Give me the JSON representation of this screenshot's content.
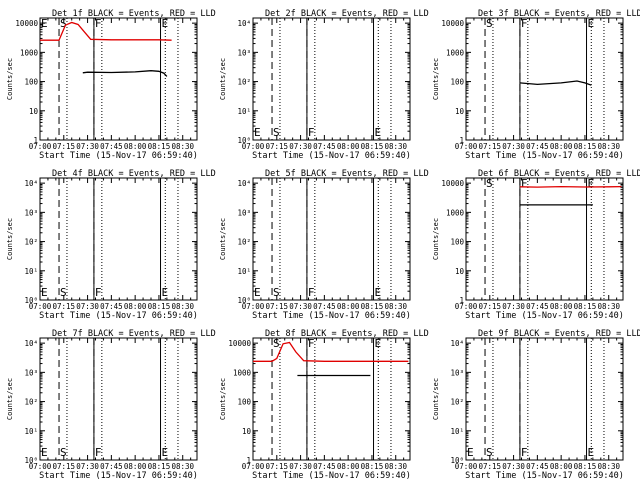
{
  "title_suffix": "BLACK = Events, RED = LLD",
  "xlabel": "Start Time (15-Nov-17 06:59:40)",
  "ylabel": "Counts/sec",
  "x_ticks": [
    "07:00",
    "07:15",
    "07:30",
    "07:45",
    "08:00",
    "08:15",
    "08:30"
  ],
  "y_ticks_a": [
    "1",
    "10",
    "100",
    "1000",
    "10000"
  ],
  "y_ticks_b": [
    "10⁰",
    "10¹",
    "10²",
    "10³",
    "10⁴"
  ],
  "colors": {
    "events": "#000000",
    "lld": "#e00000",
    "axes": "#000000"
  },
  "chart_data": [
    {
      "type": "line",
      "title": "Det 1f",
      "ylim": [
        1,
        15000
      ],
      "yscale": "log",
      "yticks": "a",
      "markers": [
        {
          "label": "E",
          "t": "07:00"
        },
        {
          "label": "S",
          "t": "07:12"
        },
        {
          "label": "F",
          "t": "07:34"
        },
        {
          "label": "E",
          "t": "08:16"
        }
      ],
      "series": [
        {
          "name": "LLD",
          "color": "#e00000",
          "x": [
            "07:00",
            "07:12",
            "07:16",
            "07:20",
            "07:24",
            "07:28",
            "07:32",
            "07:45",
            "08:00",
            "08:15",
            "08:23"
          ],
          "y": [
            2600,
            2600,
            8500,
            10500,
            9000,
            5000,
            2800,
            2700,
            2700,
            2700,
            2600
          ]
        },
        {
          "name": "Events",
          "color": "#000000",
          "x": [
            "07:27",
            "07:30",
            "07:45",
            "08:00",
            "08:10",
            "08:15",
            "08:18",
            "08:20"
          ],
          "y": [
            200,
            210,
            205,
            215,
            235,
            225,
            195,
            150
          ]
        }
      ]
    },
    {
      "type": "line",
      "title": "Det 2f",
      "ylim": [
        1,
        15000
      ],
      "yscale": "log",
      "yticks": "b",
      "markers": [
        {
          "label": "E",
          "t": "07:00"
        },
        {
          "label": "S",
          "t": "07:12"
        },
        {
          "label": "F",
          "t": "07:34"
        },
        {
          "label": "E",
          "t": "08:16"
        }
      ],
      "series": []
    },
    {
      "type": "line",
      "title": "Det 3f",
      "ylim": [
        1,
        15000
      ],
      "yscale": "log",
      "yticks": "a",
      "markers": [
        {
          "label": "S",
          "t": "07:12"
        },
        {
          "label": "F",
          "t": "07:34"
        },
        {
          "label": "E",
          "t": "08:16"
        }
      ],
      "series": [
        {
          "name": "Events",
          "color": "#000000",
          "x": [
            "07:34",
            "07:45",
            "08:00",
            "08:10",
            "08:15",
            "08:19"
          ],
          "y": [
            90,
            80,
            90,
            105,
            90,
            75
          ]
        }
      ]
    },
    {
      "type": "line",
      "title": "Det 4f",
      "ylim": [
        1,
        15000
      ],
      "yscale": "log",
      "yticks": "b",
      "markers": [
        {
          "label": "E",
          "t": "07:00"
        },
        {
          "label": "S",
          "t": "07:12"
        },
        {
          "label": "F",
          "t": "07:34"
        },
        {
          "label": "E",
          "t": "08:16"
        }
      ],
      "series": []
    },
    {
      "type": "line",
      "title": "Det 5f",
      "ylim": [
        1,
        15000
      ],
      "yscale": "log",
      "yticks": "b",
      "markers": [
        {
          "label": "E",
          "t": "07:00"
        },
        {
          "label": "S",
          "t": "07:12"
        },
        {
          "label": "F",
          "t": "07:34"
        },
        {
          "label": "E",
          "t": "08:16"
        }
      ],
      "series": []
    },
    {
      "type": "line",
      "title": "Det 6f",
      "ylim": [
        1,
        15000
      ],
      "yscale": "log",
      "yticks": "a",
      "markers": [
        {
          "label": "S",
          "t": "07:12"
        },
        {
          "label": "F",
          "t": "07:34"
        },
        {
          "label": "E",
          "t": "08:16"
        }
      ],
      "series": [
        {
          "name": "LLD",
          "color": "#e00000",
          "x": [
            "07:34",
            "07:45",
            "08:00",
            "08:15",
            "08:30",
            "08:38"
          ],
          "y": [
            7500,
            7300,
            7600,
            7400,
            7500,
            7600
          ]
        },
        {
          "name": "Events",
          "color": "#000000",
          "x": [
            "07:34",
            "07:45",
            "08:00",
            "08:15",
            "08:20"
          ],
          "y": [
            1800,
            1800,
            1800,
            1800,
            1800
          ]
        }
      ]
    },
    {
      "type": "line",
      "title": "Det 7f",
      "ylim": [
        1,
        15000
      ],
      "yscale": "log",
      "yticks": "b",
      "markers": [
        {
          "label": "E",
          "t": "07:00"
        },
        {
          "label": "S",
          "t": "07:12"
        },
        {
          "label": "F",
          "t": "07:34"
        },
        {
          "label": "E",
          "t": "08:16"
        }
      ],
      "series": []
    },
    {
      "type": "line",
      "title": "Det 8f",
      "ylim": [
        1,
        15000
      ],
      "yscale": "log",
      "yticks": "a",
      "markers": [
        {
          "label": "S",
          "t": "07:12"
        },
        {
          "label": "F",
          "t": "07:34"
        },
        {
          "label": "E",
          "t": "08:16"
        }
      ],
      "series": [
        {
          "name": "LLD",
          "color": "#e00000",
          "x": [
            "07:00",
            "07:12",
            "07:15",
            "07:19",
            "07:23",
            "07:27",
            "07:32",
            "07:45",
            "08:00",
            "08:15",
            "08:30",
            "08:38"
          ],
          "y": [
            2400,
            2400,
            3000,
            9500,
            10500,
            5000,
            2500,
            2400,
            2400,
            2400,
            2400,
            2400
          ]
        },
        {
          "name": "Events",
          "color": "#000000",
          "x": [
            "07:28",
            "07:45",
            "08:00",
            "08:10",
            "08:14"
          ],
          "y": [
            780,
            780,
            780,
            780,
            780
          ]
        }
      ]
    },
    {
      "type": "line",
      "title": "Det 9f",
      "ylim": [
        1,
        15000
      ],
      "yscale": "log",
      "yticks": "b",
      "markers": [
        {
          "label": "E",
          "t": "07:00"
        },
        {
          "label": "S",
          "t": "07:12"
        },
        {
          "label": "F",
          "t": "07:34"
        },
        {
          "label": "E",
          "t": "08:16"
        }
      ],
      "series": []
    }
  ]
}
